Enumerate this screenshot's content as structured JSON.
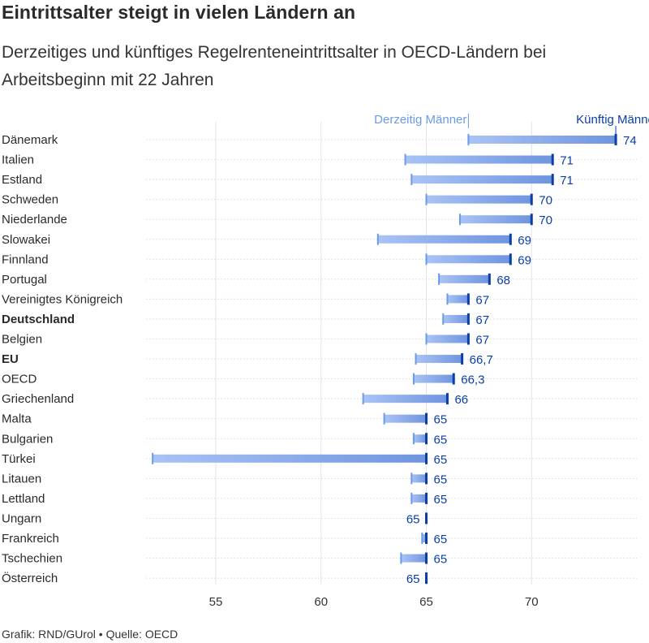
{
  "title": "Eintrittsalter steigt in vielen Ländern an",
  "subtitle": "Derzeitiges und künftiges Regelrenteneintrittsalter in OECD-Ländern bei Arbeitsbeginn mit 22 Jahren",
  "footer": "Grafik: RND/GUrol • Quelle: OECD",
  "colors": {
    "current": "#6a9bea",
    "future": "#0b3fa8",
    "bar_light": "#a9c3f5",
    "bar_dark": "#6f95e0",
    "grid": "#e4e4e4",
    "row_line": "#d8d8d8"
  },
  "chart_data": {
    "type": "dumbbell",
    "legend": {
      "current": "Derzeitig Männer",
      "future": "Künftig Männer"
    },
    "x_ticks": [
      55,
      60,
      65,
      70
    ],
    "xlim": [
      51.7,
      74.5
    ],
    "grid": true,
    "bold_countries": [
      "Deutschland",
      "EU"
    ],
    "rows": [
      {
        "country": "Dänemark",
        "current": 67,
        "future": 74,
        "label": "74"
      },
      {
        "country": "Italien",
        "current": 64,
        "future": 71,
        "label": "71"
      },
      {
        "country": "Estland",
        "current": 64.3,
        "future": 71,
        "label": "71"
      },
      {
        "country": "Schweden",
        "current": 65,
        "future": 70,
        "label": "70"
      },
      {
        "country": "Niederlande",
        "current": 66.6,
        "future": 70,
        "label": "70"
      },
      {
        "country": "Slowakei",
        "current": 62.7,
        "future": 69,
        "label": "69"
      },
      {
        "country": "Finnland",
        "current": 65,
        "future": 69,
        "label": "69"
      },
      {
        "country": "Portugal",
        "current": 65.6,
        "future": 68,
        "label": "68"
      },
      {
        "country": "Vereinigtes Königreich",
        "current": 66,
        "future": 67,
        "label": "67"
      },
      {
        "country": "Deutschland",
        "current": 65.8,
        "future": 67,
        "label": "67"
      },
      {
        "country": "Belgien",
        "current": 65,
        "future": 67,
        "label": "67"
      },
      {
        "country": "EU",
        "current": 64.5,
        "future": 66.7,
        "label": "66,7"
      },
      {
        "country": "OECD",
        "current": 64.4,
        "future": 66.3,
        "label": "66,3"
      },
      {
        "country": "Griechenland",
        "current": 62,
        "future": 66,
        "label": "66"
      },
      {
        "country": "Malta",
        "current": 63,
        "future": 65,
        "label": "65"
      },
      {
        "country": "Bulgarien",
        "current": 64.4,
        "future": 65,
        "label": "65"
      },
      {
        "country": "Türkei",
        "current": 52,
        "future": 65,
        "label": "65"
      },
      {
        "country": "Litauen",
        "current": 64.3,
        "future": 65,
        "label": "65"
      },
      {
        "country": "Lettland",
        "current": 64.3,
        "future": 65,
        "label": "65"
      },
      {
        "country": "Ungarn",
        "current": 65,
        "future": 65,
        "label": "65"
      },
      {
        "country": "Frankreich",
        "current": 64.8,
        "future": 65,
        "label": "65"
      },
      {
        "country": "Tschechien",
        "current": 63.8,
        "future": 65,
        "label": "65"
      },
      {
        "country": "Österreich",
        "current": 65,
        "future": 65,
        "label": "65"
      }
    ]
  }
}
